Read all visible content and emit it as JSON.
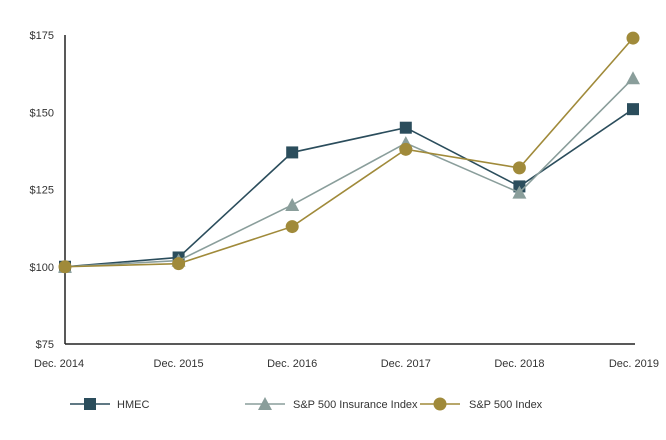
{
  "chart_data": {
    "type": "line",
    "title": "",
    "xlabel": "",
    "ylabel": "",
    "categories": [
      "Dec. 2014",
      "Dec. 2015",
      "Dec. 2016",
      "Dec. 2017",
      "Dec. 2018",
      "Dec. 2019"
    ],
    "ylim": [
      75,
      175
    ],
    "yticks": [
      75,
      100,
      125,
      150,
      175
    ],
    "ytick_labels": [
      "$75",
      "$100",
      "$125",
      "$150",
      "$175"
    ],
    "grid": false,
    "legend_position": "bottom",
    "series": [
      {
        "name": "HMEC",
        "marker": "square",
        "color": "#2b4d5c",
        "values": [
          100,
          103,
          137,
          145,
          126,
          151
        ]
      },
      {
        "name": "S&P 500 Insurance Index",
        "marker": "triangle",
        "color": "#8a9e9b",
        "values": [
          100,
          102,
          120,
          140,
          124,
          161
        ]
      },
      {
        "name": "S&P 500 Index",
        "marker": "circle",
        "color": "#a08a3a",
        "values": [
          100,
          101,
          113,
          138,
          132,
          174
        ]
      }
    ]
  }
}
